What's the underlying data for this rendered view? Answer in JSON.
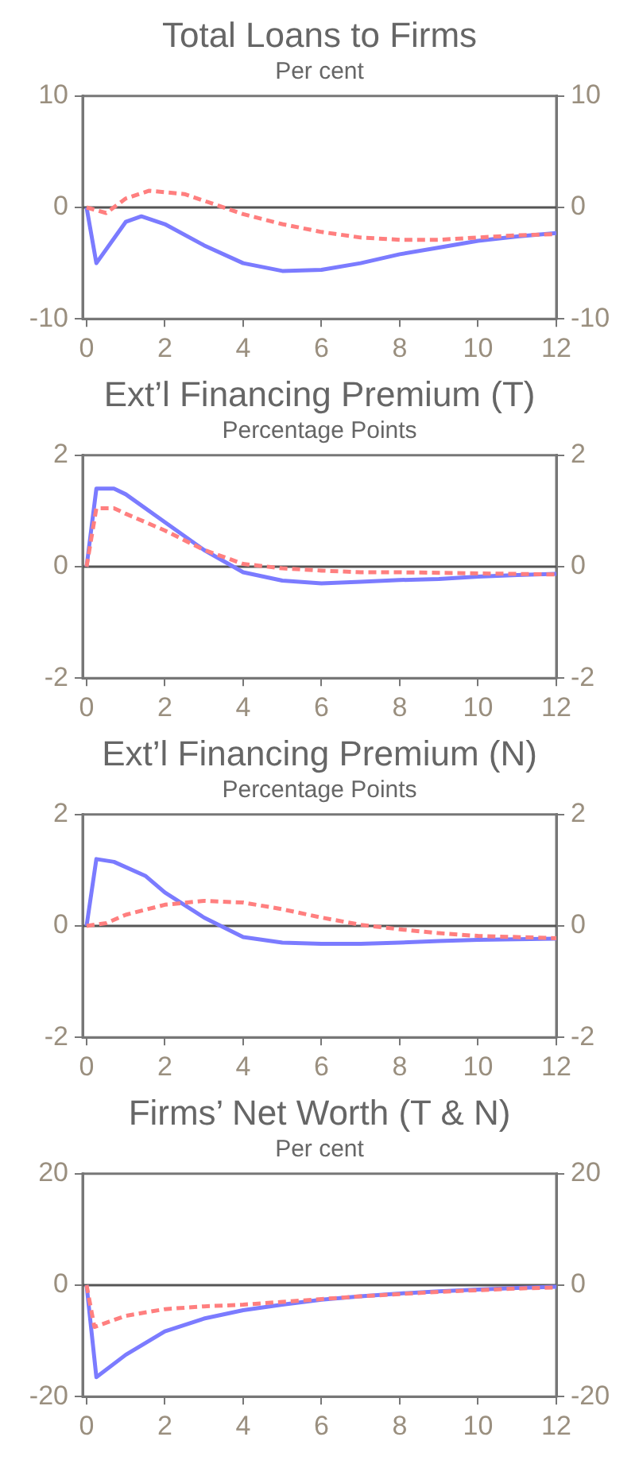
{
  "chart_data": [
    {
      "type": "line",
      "title": "Total Loans to Firms",
      "subtitle": "Per cent",
      "xlim": [
        -0.1,
        12
      ],
      "xticks": [
        0,
        2,
        4,
        6,
        8,
        10,
        12
      ],
      "ylim": [
        -10,
        10
      ],
      "yticks": [
        -10,
        0,
        10
      ],
      "y2lim": [
        -10,
        10
      ],
      "y2ticks": [
        -10,
        0,
        10
      ],
      "grid": false,
      "legend": false,
      "ref_lines": [
        {
          "axis": "y",
          "value": 0,
          "color": "#555555"
        }
      ],
      "series": [
        {
          "color": "#7b7bff",
          "line_style": "solid",
          "x": [
            0,
            0.25,
            1,
            1.4,
            2,
            3,
            4,
            5,
            6,
            7,
            8,
            9,
            10,
            11,
            12
          ],
          "values": [
            0,
            -5,
            -1.3,
            -0.8,
            -1.5,
            -3.4,
            -5,
            -5.7,
            -5.6,
            -5,
            -4.2,
            -3.6,
            -3,
            -2.6,
            -2.3
          ]
        },
        {
          "color": "#ff7f7f",
          "line_style": "dashed",
          "x": [
            0,
            0.5,
            1,
            1.6,
            2.5,
            3,
            4,
            5,
            6,
            7,
            8,
            9,
            10,
            11,
            12
          ],
          "values": [
            0,
            -0.5,
            0.8,
            1.5,
            1.2,
            0.6,
            -0.6,
            -1.5,
            -2.2,
            -2.7,
            -2.9,
            -2.9,
            -2.7,
            -2.5,
            -2.4
          ]
        }
      ]
    },
    {
      "type": "line",
      "title": "Ext’l Financing Premium (T)",
      "subtitle": "Percentage Points",
      "xlim": [
        -0.1,
        12
      ],
      "xticks": [
        0,
        2,
        4,
        6,
        8,
        10,
        12
      ],
      "ylim": [
        -2,
        2
      ],
      "yticks": [
        -2,
        0,
        2
      ],
      "y2lim": [
        -2,
        2
      ],
      "y2ticks": [
        -2,
        0,
        2
      ],
      "grid": false,
      "legend": false,
      "ref_lines": [
        {
          "axis": "y",
          "value": 0,
          "color": "#555555"
        }
      ],
      "series": [
        {
          "color": "#7b7bff",
          "line_style": "solid",
          "x": [
            0,
            0.25,
            0.7,
            1,
            2,
            3,
            4,
            5,
            6,
            7,
            8,
            9,
            10,
            11,
            12
          ],
          "values": [
            0,
            1.4,
            1.4,
            1.3,
            0.8,
            0.3,
            -0.1,
            -0.25,
            -0.3,
            -0.27,
            -0.24,
            -0.22,
            -0.18,
            -0.15,
            -0.13
          ]
        },
        {
          "color": "#ff7f7f",
          "line_style": "dashed",
          "x": [
            0,
            0.25,
            0.7,
            1,
            2,
            3,
            4,
            5,
            6,
            7,
            8,
            10,
            12
          ],
          "values": [
            0,
            1.05,
            1.05,
            0.95,
            0.65,
            0.3,
            0.05,
            -0.03,
            -0.07,
            -0.1,
            -0.1,
            -0.12,
            -0.14
          ]
        }
      ]
    },
    {
      "type": "line",
      "title": "Ext’l Financing Premium (N)",
      "subtitle": "Percentage Points",
      "xlim": [
        -0.1,
        12
      ],
      "xticks": [
        0,
        2,
        4,
        6,
        8,
        10,
        12
      ],
      "ylim": [
        -2,
        2
      ],
      "yticks": [
        -2,
        0,
        2
      ],
      "y2lim": [
        -2,
        2
      ],
      "y2ticks": [
        -2,
        0,
        2
      ],
      "grid": false,
      "legend": false,
      "ref_lines": [
        {
          "axis": "y",
          "value": 0,
          "color": "#555555"
        }
      ],
      "series": [
        {
          "color": "#7b7bff",
          "line_style": "solid",
          "x": [
            0,
            0.25,
            0.7,
            1.5,
            2,
            3,
            4,
            5,
            6,
            7,
            8,
            9,
            10,
            11,
            12
          ],
          "values": [
            0,
            1.2,
            1.15,
            0.9,
            0.6,
            0.15,
            -0.2,
            -0.3,
            -0.32,
            -0.32,
            -0.3,
            -0.27,
            -0.25,
            -0.24,
            -0.23
          ]
        },
        {
          "color": "#ff7f7f",
          "line_style": "dashed",
          "x": [
            0,
            0.5,
            1,
            2,
            3,
            4,
            5,
            6,
            7,
            8,
            9,
            10,
            11,
            12
          ],
          "values": [
            0,
            0.05,
            0.2,
            0.38,
            0.45,
            0.42,
            0.3,
            0.15,
            0.02,
            -0.06,
            -0.13,
            -0.18,
            -0.2,
            -0.22
          ]
        }
      ]
    },
    {
      "type": "line",
      "title": "Firms’ Net Worth (T & N)",
      "subtitle": "Per cent",
      "xlim": [
        -0.1,
        12
      ],
      "xticks": [
        0,
        2,
        4,
        6,
        8,
        10,
        12
      ],
      "ylim": [
        -20,
        20
      ],
      "yticks": [
        -20,
        0,
        20
      ],
      "y2lim": [
        -20,
        20
      ],
      "y2ticks": [
        -20,
        0,
        20
      ],
      "grid": false,
      "legend": false,
      "ref_lines": [
        {
          "axis": "y",
          "value": 0,
          "color": "#555555"
        }
      ],
      "series": [
        {
          "color": "#7b7bff",
          "line_style": "solid",
          "x": [
            0,
            0.25,
            1,
            2,
            3,
            4,
            5,
            6,
            7,
            8,
            9,
            10,
            11,
            12
          ],
          "values": [
            0,
            -16.5,
            -12.5,
            -8.3,
            -6,
            -4.5,
            -3.5,
            -2.6,
            -2,
            -1.5,
            -1.1,
            -0.8,
            -0.5,
            -0.3
          ]
        },
        {
          "color": "#ff7f7f",
          "line_style": "dashed",
          "x": [
            0,
            0.2,
            1,
            2,
            3,
            4,
            5,
            6,
            7,
            8,
            9,
            10,
            11,
            12
          ],
          "values": [
            0,
            -7.5,
            -5.5,
            -4.3,
            -3.8,
            -3.5,
            -3,
            -2.5,
            -2,
            -1.6,
            -1.2,
            -0.9,
            -0.6,
            -0.4
          ]
        }
      ]
    }
  ]
}
